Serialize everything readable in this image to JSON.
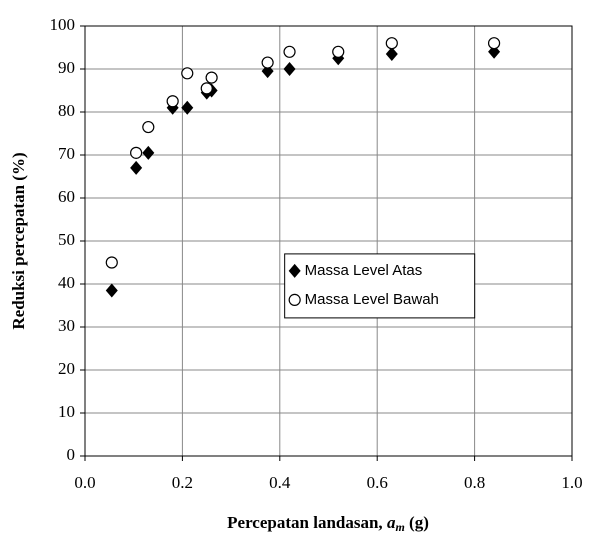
{
  "chart_data": {
    "type": "scatter",
    "xlabel": {
      "text": "Percepatan landasan, ",
      "var": "a",
      "sub": "m",
      "unit": " (g)"
    },
    "ylabel": "Reduksi percepatan (%)",
    "xlim": [
      0,
      1
    ],
    "ylim": [
      0,
      100
    ],
    "xticks": [
      {
        "value": 0,
        "label": "0.0"
      },
      {
        "value": 0.2,
        "label": "0.2"
      },
      {
        "value": 0.4,
        "label": "0.4"
      },
      {
        "value": 0.6,
        "label": "0.6"
      },
      {
        "value": 0.8,
        "label": "0.8"
      },
      {
        "value": 1,
        "label": "1.0"
      }
    ],
    "yticks": [
      0,
      10,
      20,
      30,
      40,
      50,
      60,
      70,
      80,
      90,
      100
    ],
    "grid": true,
    "legend": "center",
    "series": [
      {
        "name": "Massa Level Atas",
        "color": "#000000",
        "marker": "diamond",
        "x": [
          0.055,
          0.105,
          0.13,
          0.18,
          0.21,
          0.25,
          0.26,
          0.375,
          0.42,
          0.52,
          0.63,
          0.84
        ],
        "values": [
          38.5,
          67,
          70.5,
          81,
          81,
          84.5,
          85,
          89.5,
          90,
          92.5,
          93.5,
          94
        ]
      },
      {
        "name": "Massa Level Bawah",
        "color": "#000000",
        "marker": "circle",
        "x": [
          0.055,
          0.105,
          0.13,
          0.18,
          0.21,
          0.25,
          0.26,
          0.375,
          0.42,
          0.52,
          0.63,
          0.84
        ],
        "values": [
          45,
          70.5,
          76.5,
          82.5,
          89,
          85.5,
          88,
          91.5,
          94,
          94,
          96,
          96
        ]
      }
    ]
  }
}
